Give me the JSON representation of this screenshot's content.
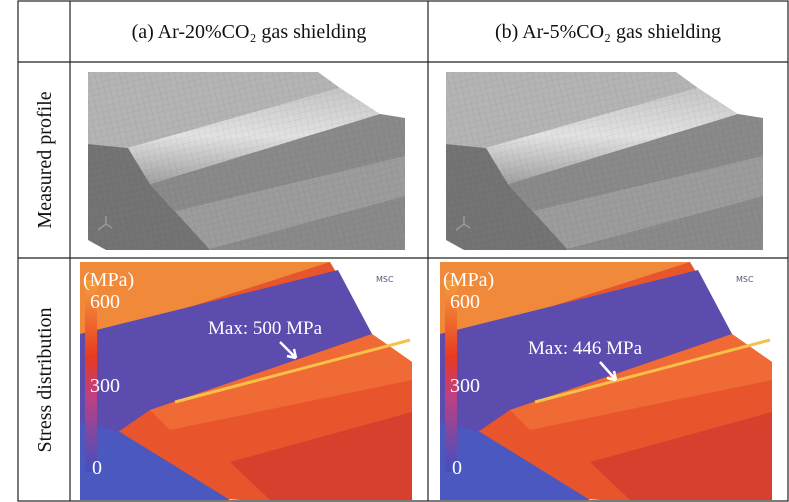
{
  "header": {
    "columns": [
      "(a) Ar-20%CO₂ gas shielding",
      "(b) Ar-5%CO₂ gas shielding"
    ]
  },
  "rows": [
    {
      "label": "Measured profile"
    },
    {
      "label": "Stress distribution",
      "panels": [
        {
          "unit": "(MPa)",
          "scale": [
            "600",
            "300",
            "0"
          ],
          "annotation": "Max: 500 MPa"
        },
        {
          "unit": "(MPa)",
          "scale": [
            "600",
            "300",
            "0"
          ],
          "annotation": "Max: 446 MPa"
        }
      ]
    }
  ]
}
